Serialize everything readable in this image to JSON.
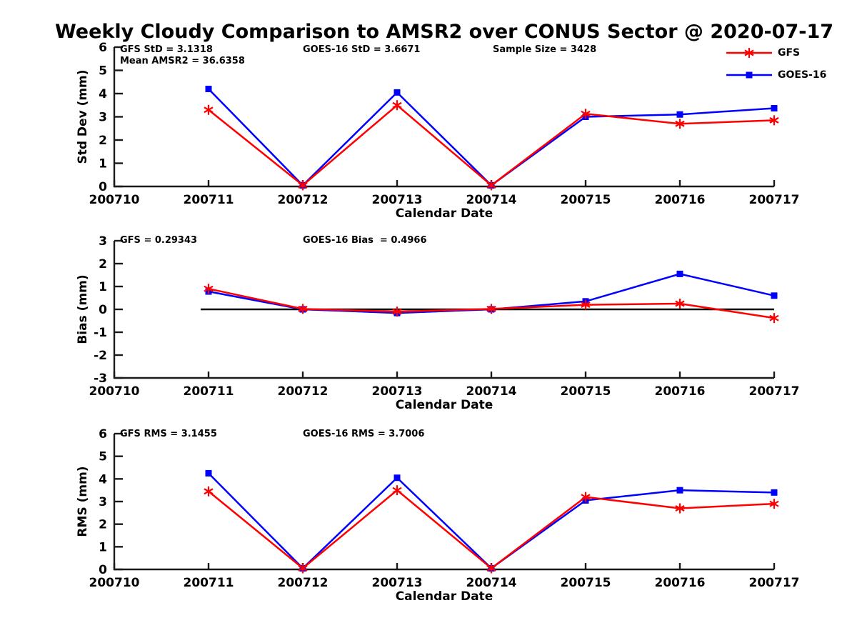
{
  "figure": {
    "title": "Weekly Cloudy Comparison to AMSR2 over CONUS Sector @ 2020-07-17"
  },
  "colors": {
    "gfs": "#ff0000",
    "goes16": "#0000ff",
    "axis": "#1a1a1a",
    "zero_line": "#000000",
    "background": "#ffffff"
  },
  "legend": {
    "position": "top-right"
  },
  "chart_data": [
    {
      "type": "line",
      "ylabel": "Std Dev (mm)",
      "xlabel": "Calendar Date",
      "ylim": [
        0,
        6
      ],
      "ytick_step": 1,
      "grid": false,
      "zero_line": false,
      "categories": [
        "200710",
        "200711",
        "200712",
        "200713",
        "200714",
        "200715",
        "200716",
        "200717"
      ],
      "series": [
        {
          "name": "GFS",
          "color": "#ff0000",
          "marker": "asterisk",
          "values": [
            null,
            3.3,
            0.05,
            3.5,
            0.05,
            3.13,
            2.7,
            2.85
          ]
        },
        {
          "name": "GOES-16",
          "color": "#0000ff",
          "marker": "square",
          "values": [
            null,
            4.2,
            0.05,
            4.05,
            0.05,
            3.0,
            3.1,
            3.37
          ]
        }
      ],
      "annotations": [
        "GFS StD = 3.1318",
        "Mean AMSR2 = 36.6358",
        "GOES-16 StD = 3.6671",
        "Sample Size = 3428"
      ]
    },
    {
      "type": "line",
      "ylabel": "Bias (mm)",
      "xlabel": "Calendar Date",
      "ylim": [
        -3,
        3
      ],
      "ytick_step": 1,
      "grid": false,
      "zero_line": true,
      "categories": [
        "200710",
        "200711",
        "200712",
        "200713",
        "200714",
        "200715",
        "200716",
        "200717"
      ],
      "series": [
        {
          "name": "GFS",
          "color": "#ff0000",
          "marker": "asterisk",
          "values": [
            null,
            0.9,
            0.02,
            -0.1,
            0.02,
            0.2,
            0.25,
            -0.38
          ]
        },
        {
          "name": "GOES-16",
          "color": "#0000ff",
          "marker": "square",
          "values": [
            null,
            0.78,
            0.0,
            -0.16,
            0.0,
            0.35,
            1.55,
            0.6
          ]
        }
      ],
      "annotations": [
        "GFS = 0.29343",
        "GOES-16 Bias  = 0.4966"
      ]
    },
    {
      "type": "line",
      "ylabel": "RMS (mm)",
      "xlabel": "Calendar Date",
      "ylim": [
        0,
        6
      ],
      "ytick_step": 1,
      "grid": false,
      "zero_line": false,
      "categories": [
        "200710",
        "200711",
        "200712",
        "200713",
        "200714",
        "200715",
        "200716",
        "200717"
      ],
      "series": [
        {
          "name": "GFS",
          "color": "#ff0000",
          "marker": "asterisk",
          "values": [
            null,
            3.45,
            0.05,
            3.5,
            0.05,
            3.2,
            2.7,
            2.9
          ]
        },
        {
          "name": "GOES-16",
          "color": "#0000ff",
          "marker": "square",
          "values": [
            null,
            4.25,
            0.05,
            4.05,
            0.05,
            3.05,
            3.5,
            3.4
          ]
        }
      ],
      "annotations": [
        "GFS RMS = 3.1455",
        "GOES-16 RMS = 3.7006"
      ]
    }
  ]
}
